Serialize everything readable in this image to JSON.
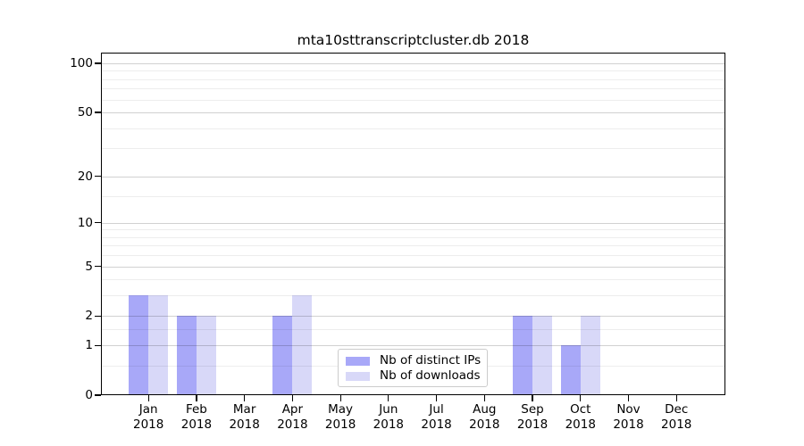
{
  "chart_data": {
    "type": "bar",
    "title": "mta10sttranscriptcluster.db 2018",
    "yscale": "log1p",
    "ylim": [
      0,
      100
    ],
    "grid": true,
    "legend_position": "lower center",
    "y_ticks": [
      0,
      1,
      2,
      5,
      10,
      20,
      50,
      100
    ],
    "y_minor_gridlines": [
      0.5,
      1.5,
      3,
      4,
      6,
      7,
      8,
      9,
      15,
      30,
      40,
      60,
      70,
      80,
      90
    ],
    "x_tick_year": "2018",
    "categories": [
      "Jan",
      "Feb",
      "Mar",
      "Apr",
      "May",
      "Jun",
      "Jul",
      "Aug",
      "Sep",
      "Oct",
      "Nov",
      "Dec"
    ],
    "series": [
      {
        "name": "Nb of distinct IPs",
        "color": "#a8a8f8",
        "values": [
          3,
          2,
          0,
          2,
          0,
          0,
          0,
          0,
          2,
          1,
          0,
          0
        ]
      },
      {
        "name": "Nb of downloads",
        "color": "#d8d8f8",
        "values": [
          3,
          2,
          0,
          3,
          0,
          0,
          0,
          0,
          2,
          2,
          0,
          0
        ]
      }
    ],
    "colors": {
      "grid_major": "rgba(0,0,0,0.18)",
      "grid_minor": "rgba(0,0,0,0.07)",
      "axis": "#000000",
      "background": "#ffffff"
    }
  }
}
